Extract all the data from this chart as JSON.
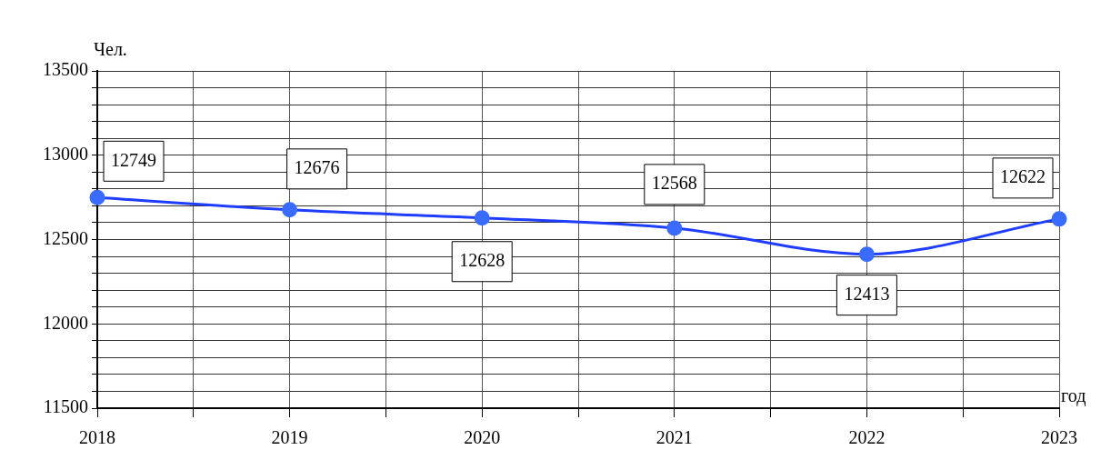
{
  "chart_data": {
    "type": "line",
    "ylabel": "Чел.",
    "xlabel": "год",
    "x": [
      2018,
      2019,
      2020,
      2021,
      2022,
      2023
    ],
    "series": [
      {
        "color": "#1f3dff",
        "values": [
          12749,
          12676,
          12628,
          12568,
          12413,
          12622
        ]
      }
    ],
    "xlim": [
      2018,
      2023
    ],
    "xticks": [
      2018,
      {
        "value": 2018.5,
        "label": null
      },
      2019,
      {
        "value": 2019.5,
        "label": null
      },
      2020,
      {
        "value": 2020.5,
        "label": null
      },
      2021,
      {
        "value": 2021.5,
        "label": null
      },
      2022,
      {
        "value": 2022.5,
        "label": null
      },
      2023
    ],
    "ylim": [
      11500,
      13500
    ],
    "yticks": [
      11500,
      {
        "value": 11600,
        "label": null
      },
      {
        "value": 11700,
        "label": null
      },
      {
        "value": 11800,
        "label": null
      },
      {
        "value": 11900,
        "label": null
      },
      12000,
      {
        "value": 12100,
        "label": null
      },
      {
        "value": 12200,
        "label": null
      },
      {
        "value": 12300,
        "label": null
      },
      {
        "value": 12400,
        "label": null
      },
      12500,
      {
        "value": 12600,
        "label": null
      },
      {
        "value": 12700,
        "label": null
      },
      {
        "value": 12800,
        "label": null
      },
      {
        "value": 12900,
        "label": null
      },
      13000,
      {
        "value": 13100,
        "label": null
      },
      {
        "value": 13200,
        "label": null
      },
      {
        "value": 13300,
        "label": null
      },
      {
        "value": 13400,
        "label": null
      },
      13500
    ],
    "grid": true,
    "marker": "circle",
    "line_style": "solid",
    "legend": false,
    "data_labels": true
  }
}
